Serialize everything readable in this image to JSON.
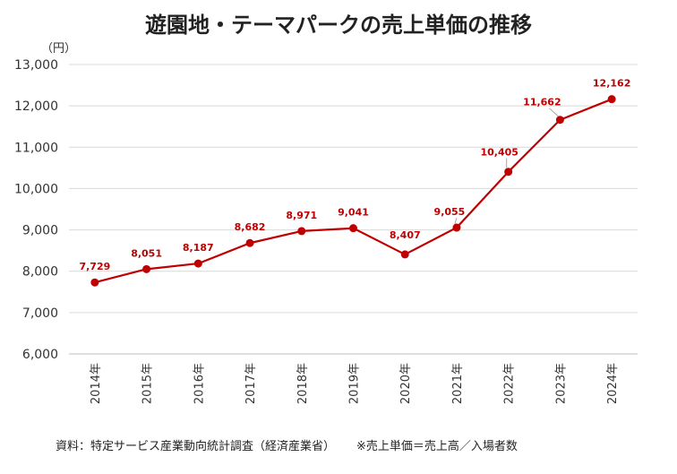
{
  "colors": {
    "series": "#c00000",
    "grid": "#d9d9d9",
    "axis": "#bfbfbf"
  },
  "chart_data": {
    "type": "line",
    "title": "遊園地・テーマパークの売上単価の推移",
    "ylabel": "（円）",
    "xlabel": "",
    "categories": [
      "2014年",
      "2015年",
      "2016年",
      "2017年",
      "2018年",
      "2019年",
      "2020年",
      "2021年",
      "2022年",
      "2023年",
      "2024年"
    ],
    "series": [
      {
        "name": "売上単価",
        "values": [
          7729,
          8051,
          8187,
          8682,
          8971,
          9041,
          8407,
          9055,
          10405,
          11662,
          12162
        ]
      }
    ],
    "data_labels": [
      "7,729",
      "8,051",
      "8,187",
      "8,682",
      "8,971",
      "9,041",
      "8,407",
      "9,055",
      "10,405",
      "11,662",
      "12,162"
    ],
    "ylim": [
      6000,
      13000
    ],
    "yticks": [
      6000,
      7000,
      8000,
      9000,
      10000,
      11000,
      12000,
      13000
    ],
    "ytick_labels": [
      "6,000",
      "7,000",
      "8,000",
      "9,000",
      "10,000",
      "11,000",
      "12,000",
      "13,000"
    ],
    "grid": true,
    "source": "資料：特定サービス産業動向統計調査（経済産業省）",
    "note": "※売上単価＝売上高／入場者数"
  }
}
